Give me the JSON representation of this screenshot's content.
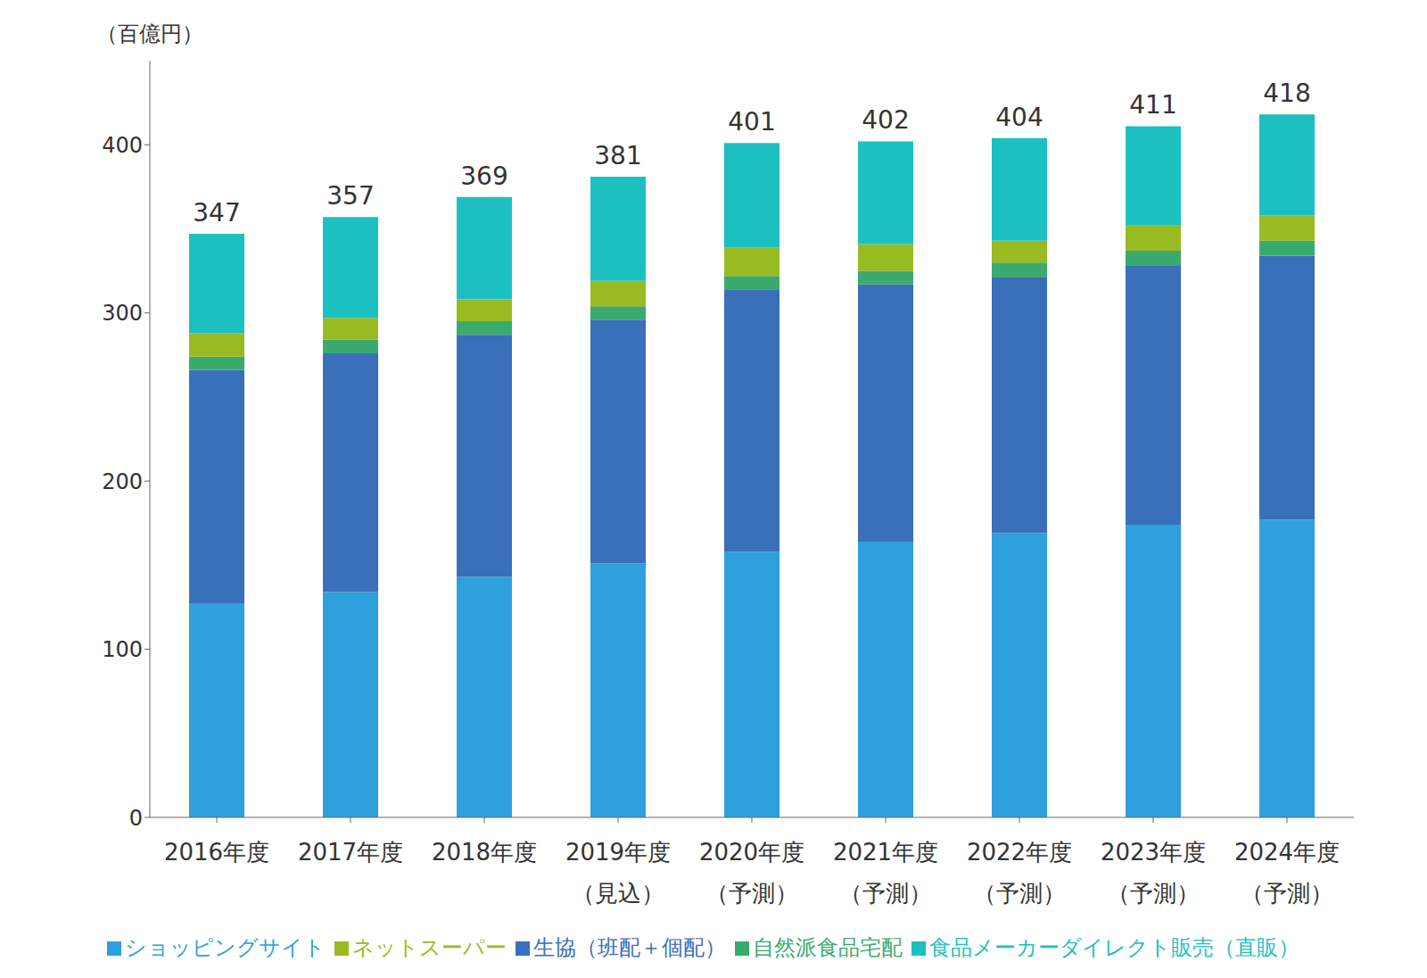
{
  "chart_data": {
    "type": "bar",
    "stacked": true,
    "y_label": "（百億円）",
    "categories": [
      "2016年度",
      "2017年度",
      "2018年度",
      "2019年度\n（見込）",
      "2020年度\n（予測）",
      "2021年度\n（予測）",
      "2022年度\n（予測）",
      "2023年度\n（予測）",
      "2024年度\n（予測）"
    ],
    "series": [
      {
        "name": "ショッピングサイト",
        "color": "#2ea0dc",
        "values": [
          127,
          134,
          143,
          151,
          158,
          164,
          169,
          174,
          177
        ]
      },
      {
        "name": "生協（班配＋個配）",
        "color": "#3a6fba",
        "values": [
          139,
          142,
          144,
          145,
          156,
          153,
          152,
          154,
          157
        ]
      },
      {
        "name": "自然派食品宅配",
        "color": "#3aaa6e",
        "values": [
          8,
          8,
          8,
          8,
          8,
          8,
          9,
          9,
          9
        ]
      },
      {
        "name": "ネットスーパー",
        "color": "#99bb22",
        "values": [
          14,
          13,
          13,
          15,
          17,
          16,
          13,
          15,
          15
        ]
      },
      {
        "name": "食品メーカーダイレクト販売（直販）",
        "color": "#1cc0c0",
        "values": [
          59,
          60,
          61,
          62,
          62,
          61,
          61,
          59,
          60
        ]
      }
    ],
    "totals": [
      347,
      357,
      369,
      381,
      401,
      402,
      404,
      411,
      418
    ],
    "ylim": [
      0,
      450
    ],
    "yticks": [
      0,
      100,
      200,
      300,
      400
    ],
    "grid": false,
    "legend": "bottom"
  }
}
